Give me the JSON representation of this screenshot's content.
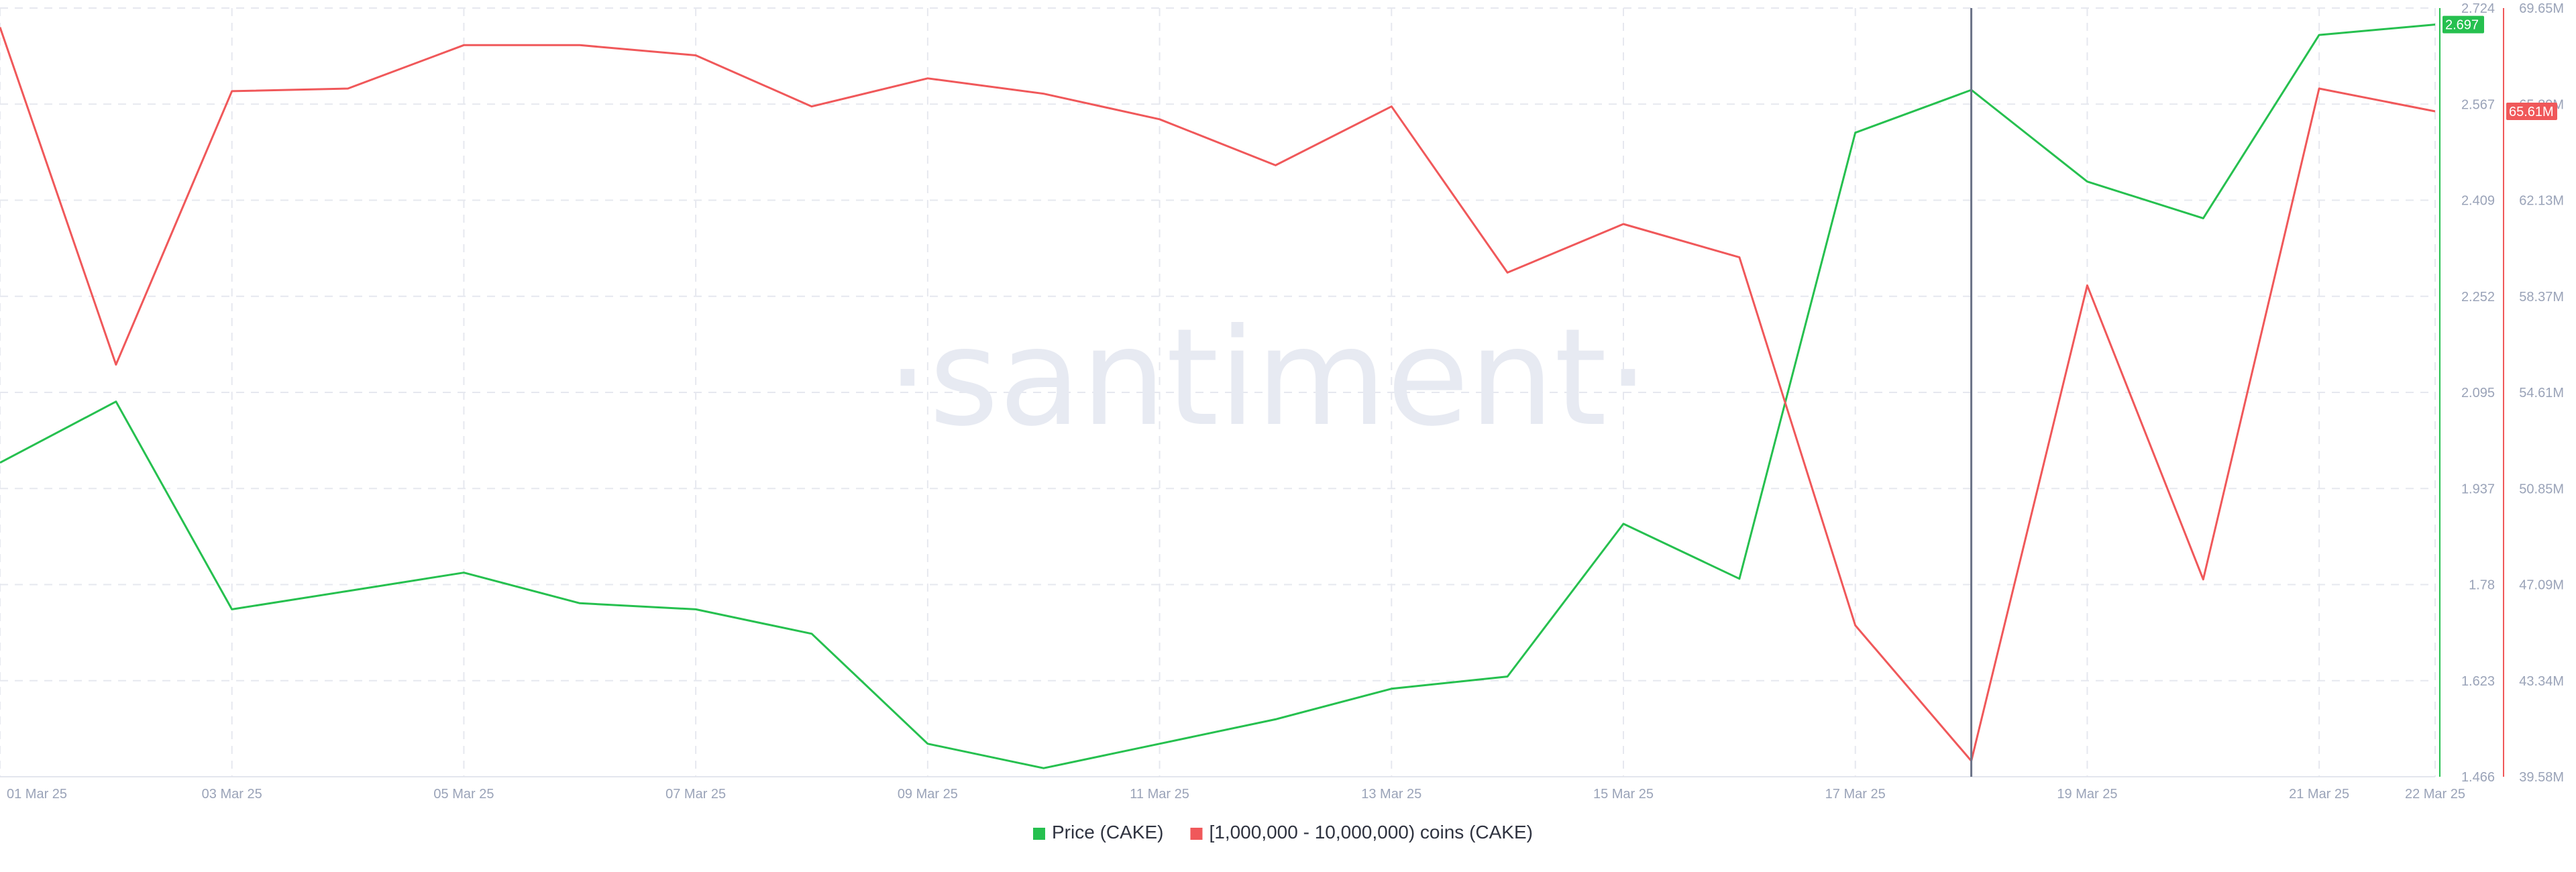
{
  "chart_data": {
    "type": "line",
    "watermark": "·santiment·",
    "x": [
      "01 Mar 25",
      "02 Mar 25",
      "03 Mar 25",
      "04 Mar 25",
      "05 Mar 25",
      "06 Mar 25",
      "07 Mar 25",
      "08 Mar 25",
      "09 Mar 25",
      "10 Mar 25",
      "11 Mar 25",
      "12 Mar 25",
      "13 Mar 25",
      "14 Mar 25",
      "15 Mar 25",
      "16 Mar 25",
      "17 Mar 25",
      "18 Mar 25",
      "19 Mar 25",
      "20 Mar 25",
      "21 Mar 25",
      "22 Mar 25"
    ],
    "x_tick_labels": [
      "01 Mar 25",
      "03 Mar 25",
      "05 Mar 25",
      "07 Mar 25",
      "09 Mar 25",
      "11 Mar 25",
      "13 Mar 25",
      "15 Mar 25",
      "17 Mar 25",
      "19 Mar 25",
      "21 Mar 25",
      "22 Mar 25"
    ],
    "series": [
      {
        "name": "Price (CAKE)",
        "color": "#26c04f",
        "axis": "left",
        "values": [
          1.98,
          2.08,
          1.74,
          1.77,
          1.8,
          1.75,
          1.74,
          1.7,
          1.52,
          1.48,
          1.52,
          1.56,
          1.61,
          1.63,
          1.88,
          1.79,
          2.52,
          2.59,
          2.44,
          2.38,
          2.68,
          2.697
        ],
        "last_value_label": "2.697"
      },
      {
        "name": "[1,000,000 - 10,000,000) coins (CAKE)",
        "color": "#f0585a",
        "axis": "right",
        "values": [
          68.9,
          55.7,
          66.4,
          66.5,
          68.2,
          68.2,
          67.8,
          65.8,
          66.9,
          66.3,
          65.3,
          63.5,
          65.8,
          59.3,
          61.2,
          59.9,
          45.5,
          40.2,
          58.8,
          47.3,
          66.5,
          65.61
        ],
        "last_value_label": "65.61M"
      }
    ],
    "left_axis": {
      "range": [
        1.466,
        2.724
      ],
      "ticks": [
        "2.724",
        "2.567",
        "2.409",
        "2.252",
        "2.095",
        "1.937",
        "1.78",
        "1.623",
        "1.466"
      ]
    },
    "right_axis": {
      "range": [
        39.58,
        69.65
      ],
      "ticks": [
        "69.65M",
        "65.89M",
        "62.13M",
        "58.37M",
        "54.61M",
        "50.85M",
        "47.09M",
        "43.34M",
        "39.58M"
      ]
    },
    "crosshair_date": "18 Mar 25",
    "grid": true,
    "legend_position": "bottom-center"
  }
}
